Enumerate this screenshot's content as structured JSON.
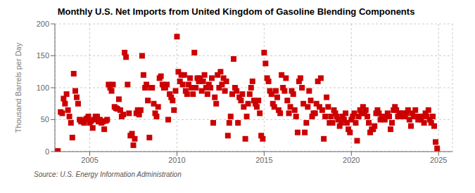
{
  "chart_data": {
    "type": "scatter",
    "title": "Monthly U.S. Net Imports from United Kingdom of Gasoline Blending Components",
    "y_label": "Thousand Barrels per Day",
    "annotation": "Source: U.S. Energy Information Administration",
    "color": "#cc0000",
    "marker": "square",
    "grid": true,
    "xlim": [
      2003.0,
      2025.8
    ],
    "ylim": [
      0,
      200
    ],
    "xticks": [
      2005,
      2010,
      2015,
      2020,
      2025
    ],
    "yticks": [
      0,
      50,
      100,
      150,
      200
    ],
    "x": [
      2003.17,
      2003.33,
      2003.42,
      2003.5,
      2003.58,
      2003.67,
      2003.75,
      2003.83,
      2003.92,
      2004.0,
      2004.08,
      2004.17,
      2004.25,
      2004.33,
      2004.42,
      2004.5,
      2004.58,
      2004.67,
      2004.75,
      2004.83,
      2004.92,
      2005.0,
      2005.08,
      2005.17,
      2005.25,
      2005.33,
      2005.42,
      2005.5,
      2005.58,
      2005.67,
      2005.75,
      2005.83,
      2005.92,
      2006.0,
      2006.08,
      2006.17,
      2006.25,
      2006.33,
      2006.42,
      2006.5,
      2006.58,
      2006.67,
      2006.75,
      2006.83,
      2006.92,
      2007.0,
      2007.08,
      2007.17,
      2007.25,
      2007.33,
      2007.42,
      2007.5,
      2007.58,
      2007.67,
      2007.75,
      2007.83,
      2007.92,
      2008.0,
      2008.08,
      2008.17,
      2008.25,
      2008.33,
      2008.42,
      2008.5,
      2008.58,
      2008.67,
      2008.75,
      2008.83,
      2008.92,
      2009.0,
      2009.08,
      2009.17,
      2009.25,
      2009.33,
      2009.42,
      2009.5,
      2009.58,
      2009.67,
      2009.75,
      2009.83,
      2009.92,
      2010.0,
      2010.08,
      2010.17,
      2010.25,
      2010.33,
      2010.42,
      2010.5,
      2010.58,
      2010.67,
      2010.75,
      2010.83,
      2010.92,
      2011.0,
      2011.08,
      2011.17,
      2011.25,
      2011.33,
      2011.42,
      2011.5,
      2011.58,
      2011.67,
      2011.75,
      2011.83,
      2011.92,
      2012.0,
      2012.08,
      2012.17,
      2012.25,
      2012.33,
      2012.42,
      2012.5,
      2012.58,
      2012.67,
      2012.75,
      2012.83,
      2012.92,
      2013.0,
      2013.08,
      2013.17,
      2013.25,
      2013.33,
      2013.42,
      2013.5,
      2013.58,
      2013.67,
      2013.75,
      2013.83,
      2013.92,
      2014.0,
      2014.08,
      2014.17,
      2014.25,
      2014.33,
      2014.42,
      2014.5,
      2014.58,
      2014.67,
      2014.75,
      2014.83,
      2014.92,
      2015.0,
      2015.08,
      2015.17,
      2015.25,
      2015.33,
      2015.42,
      2015.5,
      2015.58,
      2015.67,
      2015.75,
      2015.83,
      2015.92,
      2016.0,
      2016.08,
      2016.17,
      2016.25,
      2016.33,
      2016.42,
      2016.5,
      2016.58,
      2016.67,
      2016.75,
      2016.83,
      2016.92,
      2017.0,
      2017.08,
      2017.17,
      2017.25,
      2017.33,
      2017.42,
      2017.5,
      2017.58,
      2017.67,
      2017.75,
      2017.83,
      2017.92,
      2018.0,
      2018.08,
      2018.17,
      2018.25,
      2018.33,
      2018.42,
      2018.5,
      2018.58,
      2018.67,
      2018.75,
      2018.83,
      2018.92,
      2019.0,
      2019.08,
      2019.17,
      2019.25,
      2019.33,
      2019.42,
      2019.5,
      2019.58,
      2019.67,
      2019.75,
      2019.83,
      2019.92,
      2020.0,
      2020.08,
      2020.17,
      2020.25,
      2020.33,
      2020.42,
      2020.5,
      2020.58,
      2020.67,
      2020.75,
      2020.83,
      2020.92,
      2021.0,
      2021.08,
      2021.17,
      2021.25,
      2021.33,
      2021.42,
      2021.5,
      2021.58,
      2021.67,
      2021.75,
      2021.83,
      2021.92,
      2022.0,
      2022.08,
      2022.17,
      2022.25,
      2022.33,
      2022.42,
      2022.5,
      2022.58,
      2022.67,
      2022.75,
      2022.83,
      2022.92,
      2023.0,
      2023.08,
      2023.17,
      2023.25,
      2023.33,
      2023.42,
      2023.5,
      2023.58,
      2023.67,
      2023.75,
      2023.83,
      2023.92,
      2024.0,
      2024.08,
      2024.17,
      2024.25,
      2024.33,
      2024.42,
      2024.5,
      2024.58,
      2024.67,
      2024.75,
      2024.83,
      2024.92
    ],
    "values": [
      1,
      62,
      60,
      83,
      75,
      90,
      65,
      55,
      45,
      22,
      122,
      95,
      85,
      75,
      50,
      47,
      48,
      45,
      50,
      52,
      55,
      45,
      48,
      37,
      50,
      55,
      55,
      47,
      50,
      45,
      47,
      35,
      48,
      50,
      105,
      100,
      95,
      105,
      70,
      68,
      67,
      82,
      65,
      55,
      58,
      155,
      148,
      105,
      60,
      25,
      28,
      10,
      20,
      60,
      65,
      58,
      65,
      150,
      120,
      100,
      105,
      80,
      22,
      100,
      100,
      75,
      60,
      55,
      70,
      115,
      118,
      105,
      100,
      100,
      105,
      50,
      90,
      85,
      80,
      65,
      95,
      180,
      125,
      110,
      120,
      105,
      120,
      95,
      90,
      105,
      115,
      100,
      90,
      155,
      100,
      115,
      110,
      115,
      95,
      110,
      120,
      100,
      90,
      105,
      100,
      115,
      45,
      85,
      75,
      120,
      100,
      125,
      105,
      115,
      95,
      110,
      25,
      45,
      55,
      90,
      145,
      100,
      95,
      45,
      85,
      80,
      90,
      70,
      20,
      55,
      75,
      90,
      100,
      110,
      80,
      75,
      70,
      80,
      60,
      25,
      20,
      155,
      138,
      115,
      110,
      95,
      90,
      75,
      70,
      95,
      85,
      65,
      60,
      120,
      100,
      95,
      115,
      80,
      60,
      70,
      95,
      90,
      65,
      55,
      30,
      110,
      115,
      100,
      75,
      30,
      45,
      70,
      95,
      80,
      55,
      60,
      60,
      75,
      110,
      70,
      115,
      65,
      20,
      55,
      85,
      70,
      45,
      55,
      45,
      65,
      60,
      55,
      50,
      40,
      45,
      55,
      50,
      60,
      45,
      35,
      30,
      50,
      55,
      60,
      45,
      17,
      55,
      65,
      60,
      70,
      60,
      65,
      55,
      45,
      30,
      35,
      35,
      40,
      60,
      65,
      60,
      50,
      55,
      55,
      50,
      55,
      60,
      55,
      35,
      45,
      65,
      70,
      65,
      55,
      60,
      60,
      55,
      60,
      55,
      60,
      65,
      50,
      40,
      60,
      55,
      65,
      55,
      50,
      55,
      50,
      55,
      45,
      60,
      55,
      65,
      50,
      45,
      55,
      40,
      15,
      5
    ]
  }
}
